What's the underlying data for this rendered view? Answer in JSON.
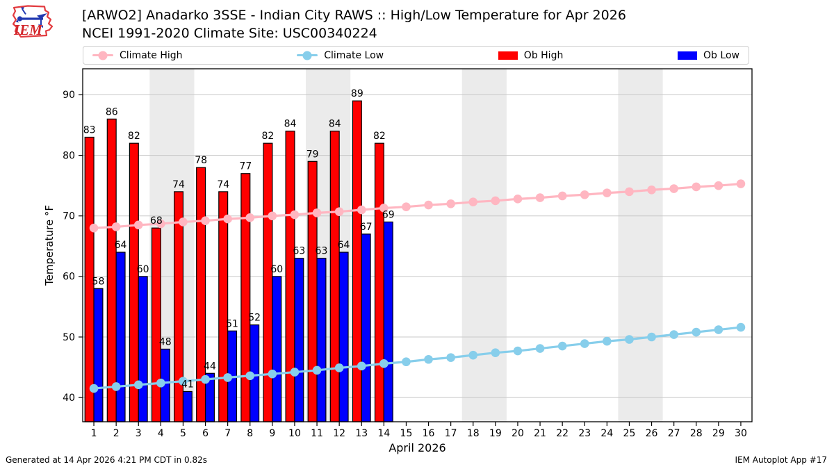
{
  "header": {
    "title_line1": "[ARWO2] Anadarko 3SSE - Indian City RAWS :: High/Low Temperature for Apr 2026",
    "title_line2": "NCEI 1991-2020 Climate Site: USC00340224",
    "logo_text": "IEM"
  },
  "legend": {
    "items": [
      {
        "label": "Climate High",
        "type": "line",
        "color": "#ffb6c1"
      },
      {
        "label": "Climate Low",
        "type": "line",
        "color": "#87ceeb"
      },
      {
        "label": "Ob High",
        "type": "patch",
        "color": "#ff0000"
      },
      {
        "label": "Ob Low",
        "type": "patch",
        "color": "#0000ff"
      }
    ]
  },
  "chart_data": {
    "type": "bar",
    "title": "[ARWO2] Anadarko 3SSE - Indian City RAWS :: High/Low Temperature for Apr 2026",
    "subtitle": "NCEI 1991-2020 Climate Site: USC00340224",
    "xlabel": "April 2026",
    "ylabel": "Temperature °F",
    "x": [
      1,
      2,
      3,
      4,
      5,
      6,
      7,
      8,
      9,
      10,
      11,
      12,
      13,
      14,
      15,
      16,
      17,
      18,
      19,
      20,
      21,
      22,
      23,
      24,
      25,
      26,
      27,
      28,
      29,
      30
    ],
    "ylim": [
      36,
      94.3
    ],
    "yticks": [
      40,
      50,
      60,
      70,
      80,
      90
    ],
    "grid": true,
    "legend_position": "top",
    "weekend_bands": [
      [
        3.5,
        5.5
      ],
      [
        10.5,
        12.5
      ],
      [
        17.5,
        19.5
      ],
      [
        24.5,
        26.5
      ]
    ],
    "band_color": "#ebebeb",
    "grid_color": "#c8c8c8",
    "series": [
      {
        "name": "Ob High",
        "type": "bar",
        "color": "#ff0000",
        "values": [
          83,
          86,
          82,
          68,
          74,
          78,
          74,
          77,
          82,
          84,
          79,
          84,
          89,
          82
        ]
      },
      {
        "name": "Ob Low",
        "type": "bar",
        "color": "#0000ff",
        "values": [
          58,
          64,
          60,
          48,
          41,
          44,
          51,
          52,
          60,
          63,
          63,
          64,
          67,
          69
        ]
      },
      {
        "name": "Climate High",
        "type": "line",
        "color": "#ffb6c1",
        "values": [
          68.0,
          68.2,
          68.5,
          68.7,
          69.0,
          69.2,
          69.5,
          69.7,
          70.0,
          70.2,
          70.5,
          70.7,
          71.0,
          71.3,
          71.5,
          71.8,
          72.0,
          72.3,
          72.5,
          72.8,
          73.0,
          73.3,
          73.5,
          73.8,
          74.0,
          74.3,
          74.5,
          74.8,
          75.0,
          75.3
        ]
      },
      {
        "name": "Climate Low",
        "type": "line",
        "color": "#87ceeb",
        "values": [
          41.5,
          41.8,
          42.1,
          42.4,
          42.7,
          43.0,
          43.3,
          43.6,
          43.9,
          44.2,
          44.5,
          44.9,
          45.2,
          45.6,
          45.9,
          46.3,
          46.6,
          47.0,
          47.4,
          47.7,
          48.1,
          48.5,
          48.9,
          49.3,
          49.6,
          50.0,
          50.4,
          50.8,
          51.2,
          51.6
        ]
      }
    ]
  },
  "footer": {
    "generated": "Generated at 14 Apr 2026 4:21 PM CDT in 0.82s",
    "app": "IEM Autoplot App #17"
  }
}
